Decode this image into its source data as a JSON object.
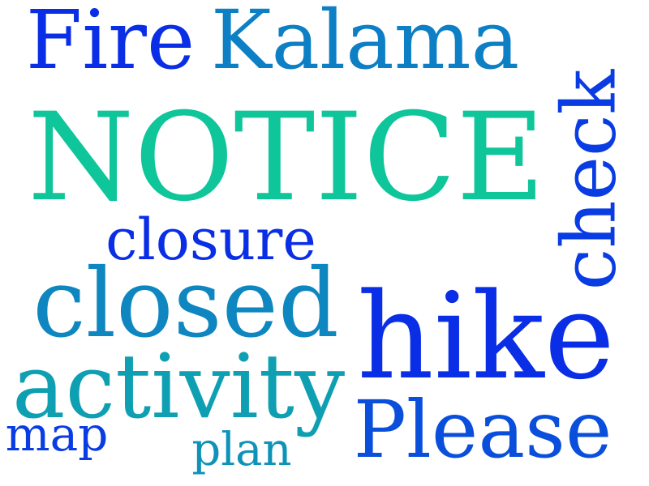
{
  "colors": {
    "background": "#ffffff",
    "blue": "#0a2ee6",
    "mid_blue": "#1264d6",
    "teal_blue": "#0e86be",
    "teal": "#0ea3b0",
    "green": "#0fc59a"
  },
  "words": {
    "fire": {
      "text": "Fire",
      "color": "#0a2ee6"
    },
    "kalama": {
      "text": "Kalama",
      "color": "#0d7fc4"
    },
    "notice": {
      "text": "NOTICE",
      "color": "#0fc59a"
    },
    "check": {
      "text": "check",
      "color": "#0a3ce4"
    },
    "closure": {
      "text": "closure",
      "color": "#0a2ee6"
    },
    "closed": {
      "text": "closed",
      "color": "#0e86c0"
    },
    "hike": {
      "text": "hike",
      "color": "#0a2ee6"
    },
    "activity": {
      "text": "activity",
      "color": "#0ea0b2"
    },
    "please": {
      "text": "Please",
      "color": "#0a4fdc"
    },
    "map": {
      "text": "map",
      "color": "#0a3ce4"
    },
    "plan": {
      "text": "plan",
      "color": "#0e93b8"
    }
  }
}
